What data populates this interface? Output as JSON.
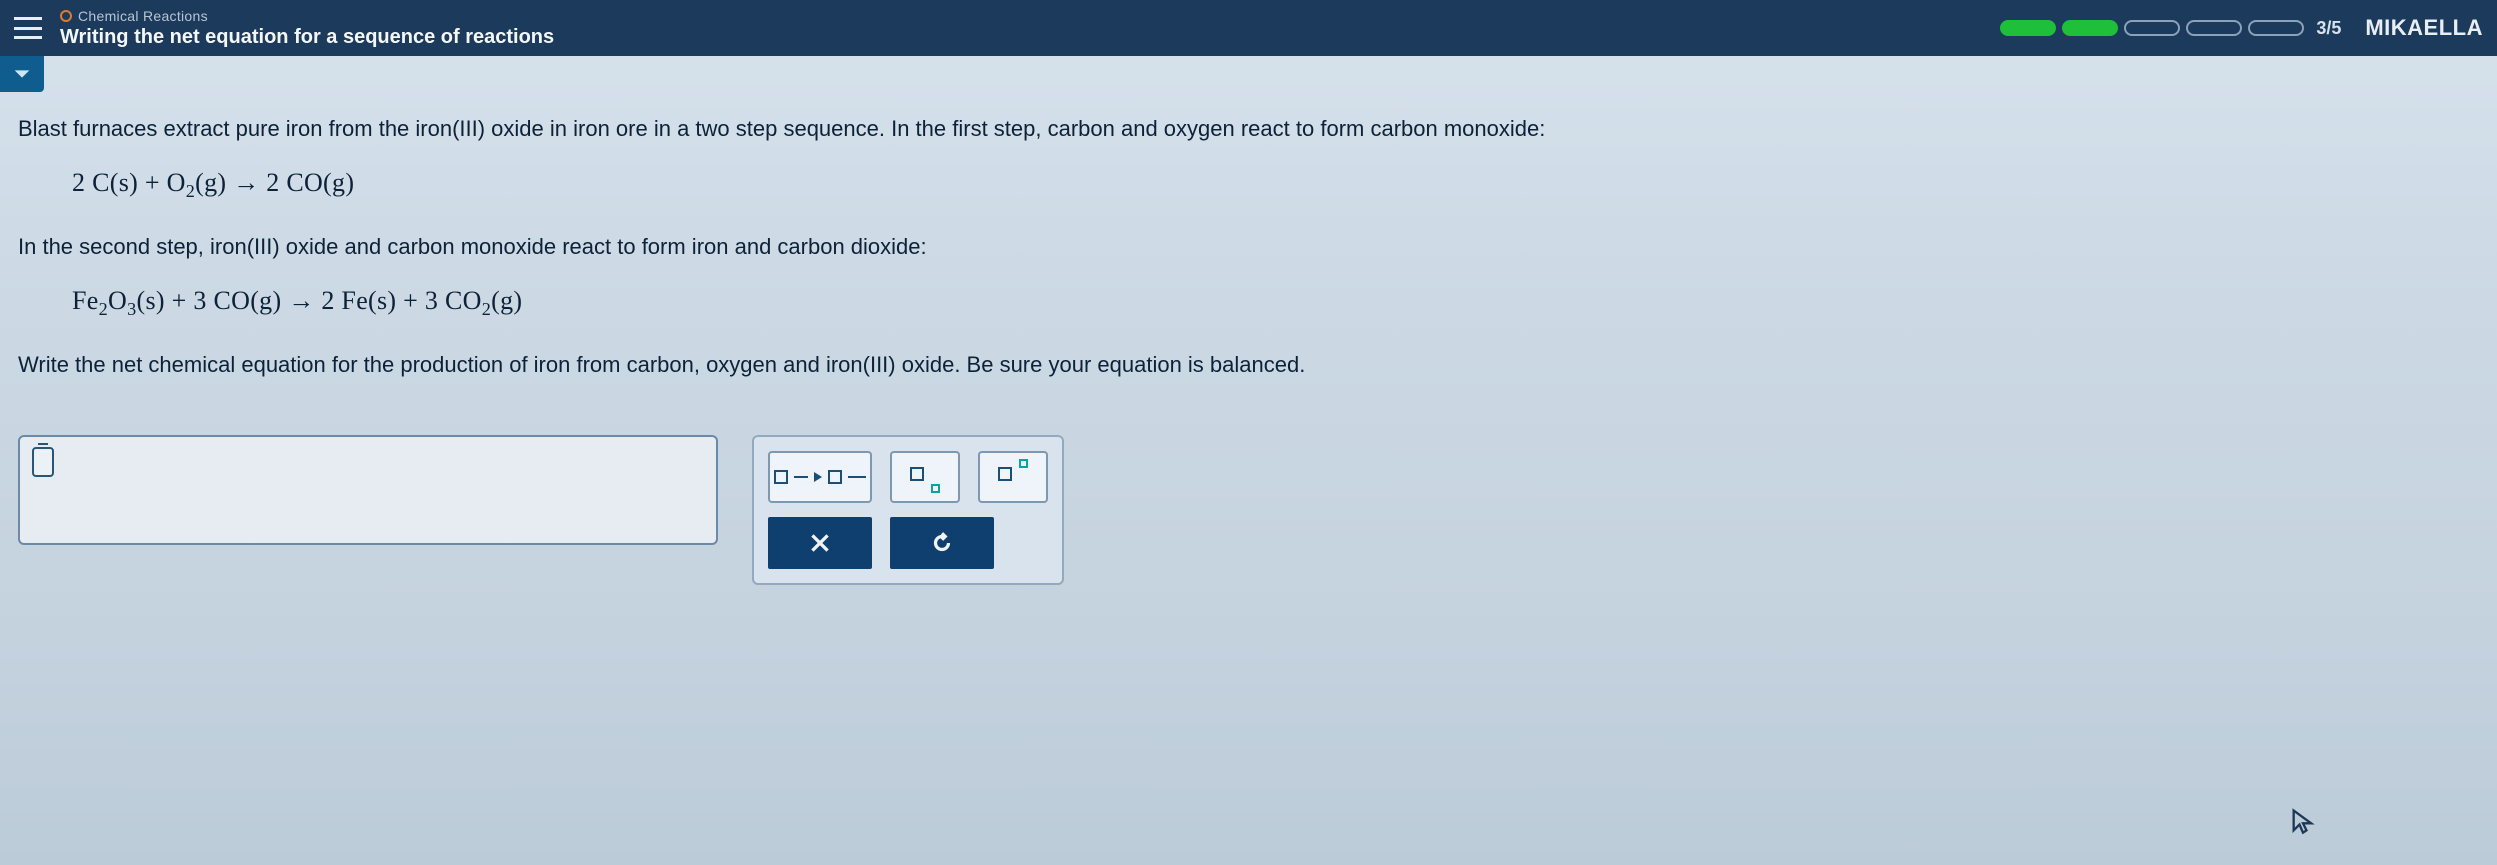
{
  "header": {
    "module_label": "Chemical Reactions",
    "lesson_title": "Writing the net equation for a sequence of reactions",
    "progress": {
      "pills_total": 5,
      "pills_filled": 2,
      "text": "3/5"
    },
    "user_name": "MIKAELLA"
  },
  "colors": {
    "header_bg": "#1b3a5c",
    "accent": "#0f3f6e",
    "pill_filled": "#1fbf3a",
    "body_text": "#0d2238",
    "panel_border": "#92a9bf",
    "tool_border": "#7e98b1",
    "tool_text": "#1a4f7a"
  },
  "problem": {
    "intro": "Blast furnaces extract pure iron from the iron(III) oxide in iron ore in a two step sequence. In the first step, carbon and oxygen react to form carbon monoxide:",
    "equation1_html": "2 C(s) + O<sub>2</sub>(g) → 2 CO(g)",
    "mid": "In the second step, iron(III) oxide and carbon monoxide react to form iron and carbon dioxide:",
    "equation2_html": "Fe<sub>2</sub>O<sub>3</sub>(s) + 3 CO(g) → 2 Fe(s) + 3 CO<sub>2</sub>(g)",
    "prompt": "Write the net chemical equation for the production of iron from carbon, oxygen and iron(III) oxide. Be sure your equation is balanced."
  },
  "answer_input": {
    "value": ""
  },
  "tools": {
    "arrow_label": "reaction-arrow",
    "subscript_label": "subscript",
    "superscript_label": "superscript",
    "clear_label": "clear",
    "reset_label": "reset"
  }
}
